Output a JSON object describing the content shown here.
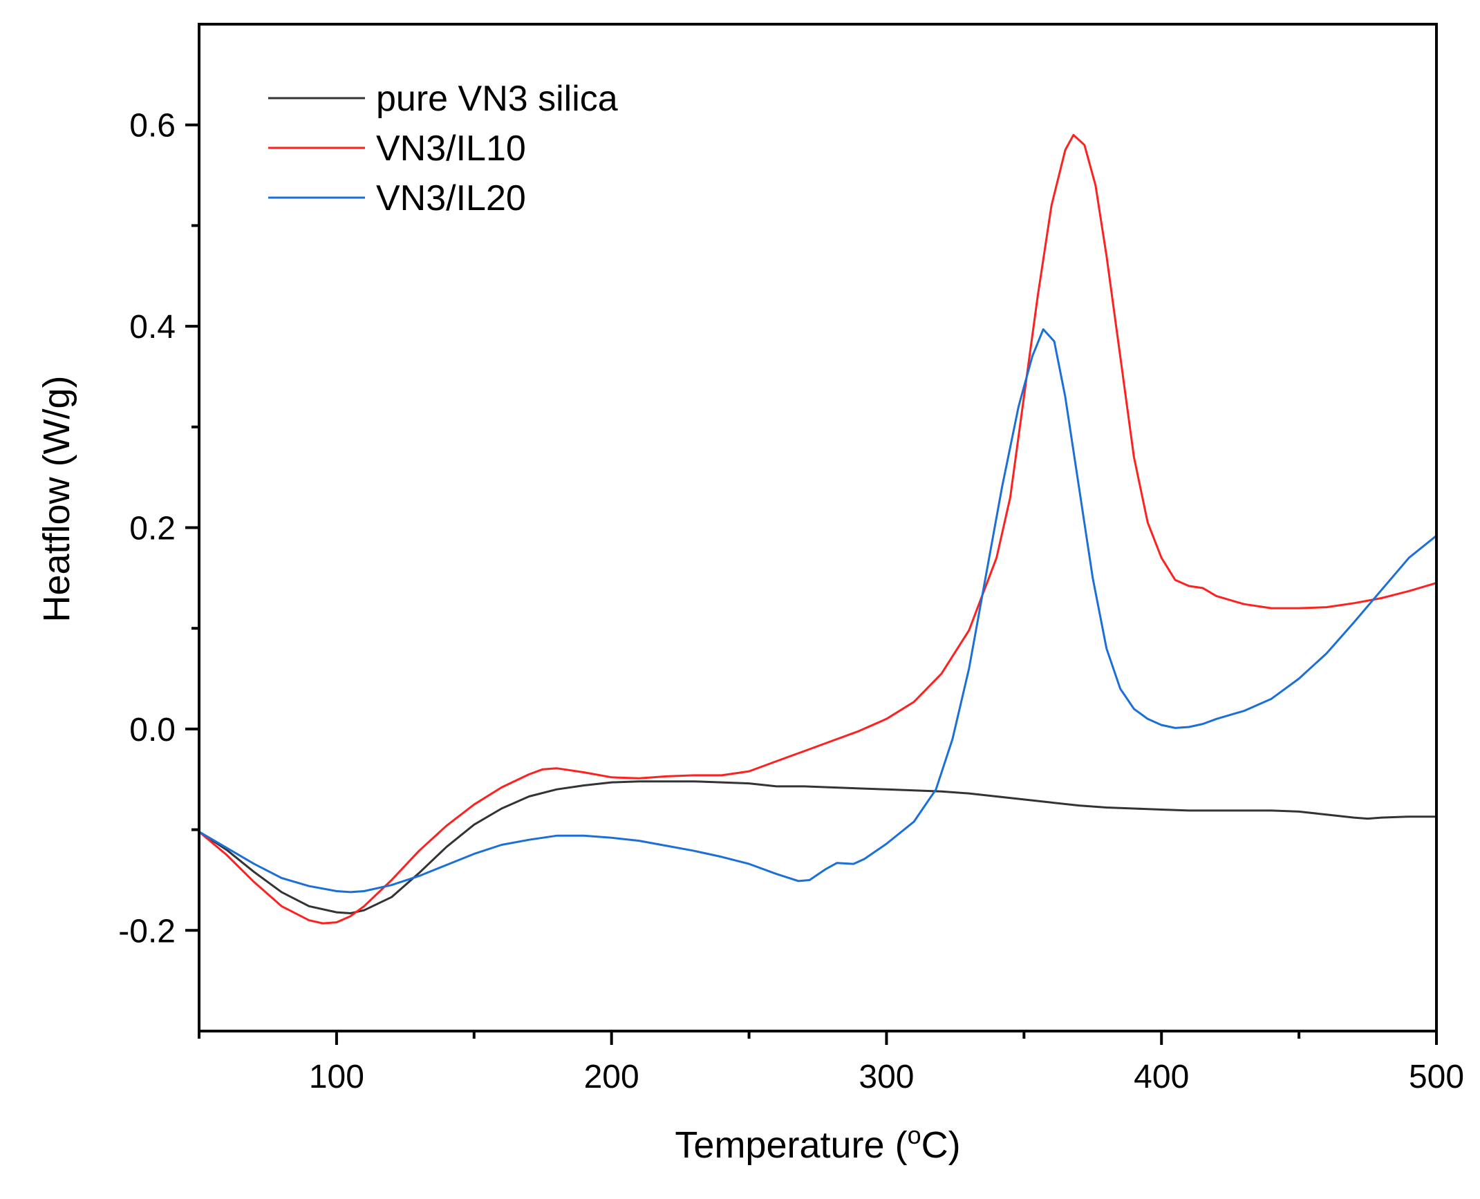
{
  "chart_data": {
    "type": "line",
    "title": "",
    "xlabel": "Temperature (",
    "xlabel_sup": "o",
    "xlabel_suffix": "C)",
    "ylabel": "Heatflow (W/g)",
    "xlim": [
      50,
      500
    ],
    "ylim": [
      -0.3,
      0.7
    ],
    "x_ticks": [
      100,
      200,
      300,
      400,
      500
    ],
    "x_minor_ticks": [
      50,
      150,
      250,
      350,
      450
    ],
    "y_ticks": [
      -0.2,
      0.0,
      0.2,
      0.4,
      0.6
    ],
    "y_tick_labels": [
      "-0.2",
      "0.0",
      "0.2",
      "0.4",
      "0.6"
    ],
    "y_minor_ticks": [
      -0.1,
      0.1,
      0.3,
      0.5
    ],
    "legend_position": "top-left",
    "series": [
      {
        "name": "pure VN3 silica",
        "color": "#333333",
        "points": [
          [
            50,
            -0.102
          ],
          [
            60,
            -0.12
          ],
          [
            70,
            -0.142
          ],
          [
            80,
            -0.162
          ],
          [
            90,
            -0.176
          ],
          [
            100,
            -0.182
          ],
          [
            105,
            -0.183
          ],
          [
            110,
            -0.18
          ],
          [
            120,
            -0.167
          ],
          [
            130,
            -0.143
          ],
          [
            140,
            -0.117
          ],
          [
            150,
            -0.095
          ],
          [
            160,
            -0.079
          ],
          [
            170,
            -0.067
          ],
          [
            180,
            -0.06
          ],
          [
            190,
            -0.056
          ],
          [
            200,
            -0.053
          ],
          [
            210,
            -0.052
          ],
          [
            220,
            -0.052
          ],
          [
            230,
            -0.052
          ],
          [
            240,
            -0.053
          ],
          [
            250,
            -0.054
          ],
          [
            260,
            -0.057
          ],
          [
            270,
            -0.057
          ],
          [
            280,
            -0.058
          ],
          [
            290,
            -0.059
          ],
          [
            300,
            -0.06
          ],
          [
            310,
            -0.061
          ],
          [
            320,
            -0.062
          ],
          [
            330,
            -0.064
          ],
          [
            340,
            -0.067
          ],
          [
            350,
            -0.07
          ],
          [
            360,
            -0.073
          ],
          [
            370,
            -0.076
          ],
          [
            380,
            -0.078
          ],
          [
            390,
            -0.079
          ],
          [
            400,
            -0.08
          ],
          [
            410,
            -0.081
          ],
          [
            420,
            -0.081
          ],
          [
            430,
            -0.081
          ],
          [
            440,
            -0.081
          ],
          [
            450,
            -0.082
          ],
          [
            460,
            -0.085
          ],
          [
            470,
            -0.088
          ],
          [
            475,
            -0.089
          ],
          [
            480,
            -0.088
          ],
          [
            490,
            -0.087
          ],
          [
            500,
            -0.087
          ]
        ]
      },
      {
        "name": "VN3/IL10",
        "color": "#ff2020",
        "points": [
          [
            50,
            -0.102
          ],
          [
            60,
            -0.125
          ],
          [
            70,
            -0.152
          ],
          [
            80,
            -0.176
          ],
          [
            90,
            -0.19
          ],
          [
            95,
            -0.193
          ],
          [
            100,
            -0.192
          ],
          [
            105,
            -0.186
          ],
          [
            110,
            -0.176
          ],
          [
            120,
            -0.15
          ],
          [
            130,
            -0.121
          ],
          [
            140,
            -0.096
          ],
          [
            150,
            -0.075
          ],
          [
            160,
            -0.058
          ],
          [
            170,
            -0.045
          ],
          [
            175,
            -0.04
          ],
          [
            180,
            -0.039
          ],
          [
            190,
            -0.043
          ],
          [
            200,
            -0.048
          ],
          [
            210,
            -0.049
          ],
          [
            220,
            -0.047
          ],
          [
            230,
            -0.046
          ],
          [
            240,
            -0.046
          ],
          [
            250,
            -0.042
          ],
          [
            260,
            -0.032
          ],
          [
            270,
            -0.022
          ],
          [
            280,
            -0.012
          ],
          [
            290,
            -0.002
          ],
          [
            300,
            0.01
          ],
          [
            310,
            0.027
          ],
          [
            320,
            0.055
          ],
          [
            330,
            0.098
          ],
          [
            340,
            0.17
          ],
          [
            345,
            0.23
          ],
          [
            350,
            0.33
          ],
          [
            355,
            0.43
          ],
          [
            360,
            0.52
          ],
          [
            365,
            0.575
          ],
          [
            368,
            0.59
          ],
          [
            372,
            0.58
          ],
          [
            376,
            0.54
          ],
          [
            380,
            0.47
          ],
          [
            385,
            0.37
          ],
          [
            390,
            0.27
          ],
          [
            395,
            0.205
          ],
          [
            400,
            0.17
          ],
          [
            405,
            0.148
          ],
          [
            410,
            0.142
          ],
          [
            415,
            0.14
          ],
          [
            420,
            0.132
          ],
          [
            430,
            0.124
          ],
          [
            440,
            0.12
          ],
          [
            450,
            0.12
          ],
          [
            460,
            0.121
          ],
          [
            470,
            0.125
          ],
          [
            480,
            0.13
          ],
          [
            490,
            0.137
          ],
          [
            500,
            0.145
          ]
        ]
      },
      {
        "name": "VN3/IL20",
        "color": "#1a6fd8",
        "points": [
          [
            50,
            -0.102
          ],
          [
            60,
            -0.118
          ],
          [
            70,
            -0.134
          ],
          [
            80,
            -0.148
          ],
          [
            90,
            -0.156
          ],
          [
            100,
            -0.161
          ],
          [
            105,
            -0.162
          ],
          [
            110,
            -0.161
          ],
          [
            120,
            -0.155
          ],
          [
            130,
            -0.146
          ],
          [
            140,
            -0.135
          ],
          [
            150,
            -0.124
          ],
          [
            160,
            -0.115
          ],
          [
            170,
            -0.11
          ],
          [
            180,
            -0.106
          ],
          [
            190,
            -0.106
          ],
          [
            200,
            -0.108
          ],
          [
            210,
            -0.111
          ],
          [
            220,
            -0.116
          ],
          [
            230,
            -0.121
          ],
          [
            240,
            -0.127
          ],
          [
            250,
            -0.134
          ],
          [
            260,
            -0.144
          ],
          [
            268,
            -0.151
          ],
          [
            272,
            -0.15
          ],
          [
            278,
            -0.139
          ],
          [
            282,
            -0.133
          ],
          [
            288,
            -0.134
          ],
          [
            292,
            -0.129
          ],
          [
            300,
            -0.114
          ],
          [
            310,
            -0.092
          ],
          [
            318,
            -0.06
          ],
          [
            324,
            -0.01
          ],
          [
            330,
            0.06
          ],
          [
            336,
            0.15
          ],
          [
            342,
            0.24
          ],
          [
            348,
            0.32
          ],
          [
            353,
            0.37
          ],
          [
            357,
            0.397
          ],
          [
            361,
            0.385
          ],
          [
            365,
            0.33
          ],
          [
            370,
            0.24
          ],
          [
            375,
            0.15
          ],
          [
            380,
            0.08
          ],
          [
            385,
            0.04
          ],
          [
            390,
            0.02
          ],
          [
            395,
            0.01
          ],
          [
            400,
            0.004
          ],
          [
            405,
            0.001
          ],
          [
            410,
            0.002
          ],
          [
            415,
            0.005
          ],
          [
            420,
            0.01
          ],
          [
            430,
            0.018
          ],
          [
            440,
            0.03
          ],
          [
            450,
            0.05
          ],
          [
            460,
            0.075
          ],
          [
            470,
            0.106
          ],
          [
            480,
            0.138
          ],
          [
            490,
            0.17
          ],
          [
            500,
            0.192
          ]
        ]
      }
    ]
  }
}
